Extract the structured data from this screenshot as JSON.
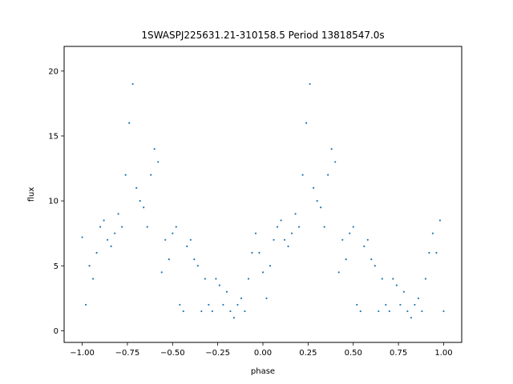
{
  "chart_data": {
    "type": "scatter",
    "title": "1SWASPJ225631.21-310158.5 Period 13818547.0s",
    "xlabel": "phase",
    "ylabel": "flux",
    "xlim": [
      -1.1,
      1.1
    ],
    "ylim": [
      -0.9,
      21.9
    ],
    "x_ticks": [
      -1.0,
      -0.75,
      -0.5,
      -0.25,
      0.0,
      0.25,
      0.5,
      0.75,
      1.0
    ],
    "x_tick_labels": [
      "−1.00",
      "−0.75",
      "−0.50",
      "−0.25",
      "0.00",
      "0.25",
      "0.50",
      "0.75",
      "1.00"
    ],
    "y_ticks": [
      0,
      5,
      10,
      15,
      20
    ],
    "y_tick_labels": [
      "0",
      "5",
      "10",
      "15",
      "20"
    ],
    "grid": false,
    "legend": "none",
    "marker_color": "#1f77b4",
    "series": [
      {
        "x": [
          -1.0,
          -0.98,
          -0.96,
          -0.94,
          -0.92,
          -0.9,
          -0.88,
          -0.86,
          -0.84,
          -0.82,
          -0.8,
          -0.78,
          -0.76,
          -0.74,
          -0.72,
          -0.7,
          -0.68,
          -0.66,
          -0.64,
          -0.62,
          -0.6,
          -0.58,
          -0.56,
          -0.54,
          -0.52,
          -0.5,
          -0.48,
          -0.46,
          -0.44,
          -0.42,
          -0.4,
          -0.38,
          -0.36,
          -0.34,
          -0.32,
          -0.3,
          -0.28,
          -0.26,
          -0.24,
          -0.22,
          -0.2,
          -0.18,
          -0.16,
          -0.14,
          -0.12,
          -0.1,
          -0.08,
          -0.06,
          -0.04,
          -0.02,
          0.0,
          0.02,
          0.04,
          0.06,
          0.08,
          0.1,
          0.12,
          0.14,
          0.16,
          0.18,
          0.2,
          0.22,
          0.24,
          0.26,
          0.28,
          0.3,
          0.32,
          0.34,
          0.36,
          0.38,
          0.4,
          0.42,
          0.44,
          0.46,
          0.48,
          0.5,
          0.52,
          0.54,
          0.56,
          0.58,
          0.6,
          0.62,
          0.64,
          0.66,
          0.68,
          0.7,
          0.72,
          0.74,
          0.76,
          0.78,
          0.8,
          0.82,
          0.84,
          0.86,
          0.88,
          0.9,
          0.92,
          0.94,
          0.96,
          0.98,
          1.0
        ],
        "y": [
          7.2,
          2.0,
          5.0,
          4.0,
          6.0,
          8.0,
          8.5,
          7.0,
          6.5,
          7.5,
          9.0,
          8.0,
          12.0,
          16.0,
          19.0,
          11.0,
          10.0,
          9.5,
          8.0,
          12.0,
          14.0,
          13.0,
          4.5,
          7.0,
          5.5,
          7.5,
          8.0,
          2.0,
          1.5,
          6.5,
          7.0,
          5.5,
          5.0,
          1.5,
          4.0,
          2.0,
          1.5,
          4.0,
          3.5,
          2.0,
          3.0,
          1.5,
          1.0,
          2.0,
          2.5,
          1.5,
          4.0,
          6.0,
          7.5,
          6.0,
          4.5,
          2.5,
          5.0,
          7.0,
          8.0,
          8.5,
          7.0,
          6.5,
          7.5,
          9.0,
          8.0,
          12.0,
          16.0,
          19.0,
          11.0,
          10.0,
          9.5,
          8.0,
          12.0,
          14.0,
          13.0,
          4.5,
          7.0,
          5.5,
          7.5,
          8.0,
          2.0,
          1.5,
          6.5,
          7.0,
          5.5,
          5.0,
          1.5,
          4.0,
          2.0,
          1.5,
          4.0,
          3.5,
          2.0,
          3.0,
          1.5,
          1.0,
          2.0,
          2.5,
          1.5,
          4.0,
          6.0,
          7.5,
          6.0,
          8.5,
          1.5
        ]
      }
    ]
  }
}
